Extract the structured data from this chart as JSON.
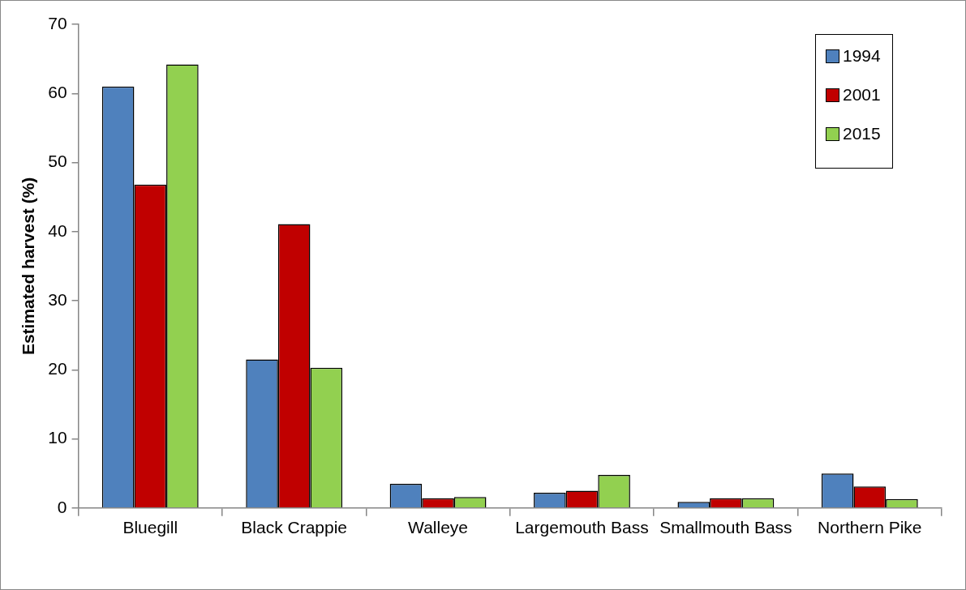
{
  "chart_data": {
    "type": "bar",
    "ylabel": "Estimated harvest (%)",
    "categories": [
      "Bluegill",
      "Black Crappie",
      "Walleye",
      "Largemouth Bass",
      "Smallmouth Bass",
      "Northern Pike"
    ],
    "series": [
      {
        "name": "1994",
        "color": "#4f81bd",
        "values": [
          61.0,
          21.5,
          3.5,
          2.2,
          0.9,
          5.0
        ]
      },
      {
        "name": "2001",
        "color": "#c00000",
        "values": [
          46.8,
          41.1,
          1.4,
          2.5,
          1.4,
          3.1
        ]
      },
      {
        "name": "2015",
        "color": "#92d050",
        "values": [
          64.2,
          20.3,
          1.6,
          4.8,
          1.4,
          1.3
        ]
      }
    ],
    "ylim": [
      0,
      70
    ],
    "yticks": [
      0,
      10,
      20,
      30,
      40,
      50,
      60,
      70
    ],
    "grid": false,
    "legend": "top right"
  }
}
